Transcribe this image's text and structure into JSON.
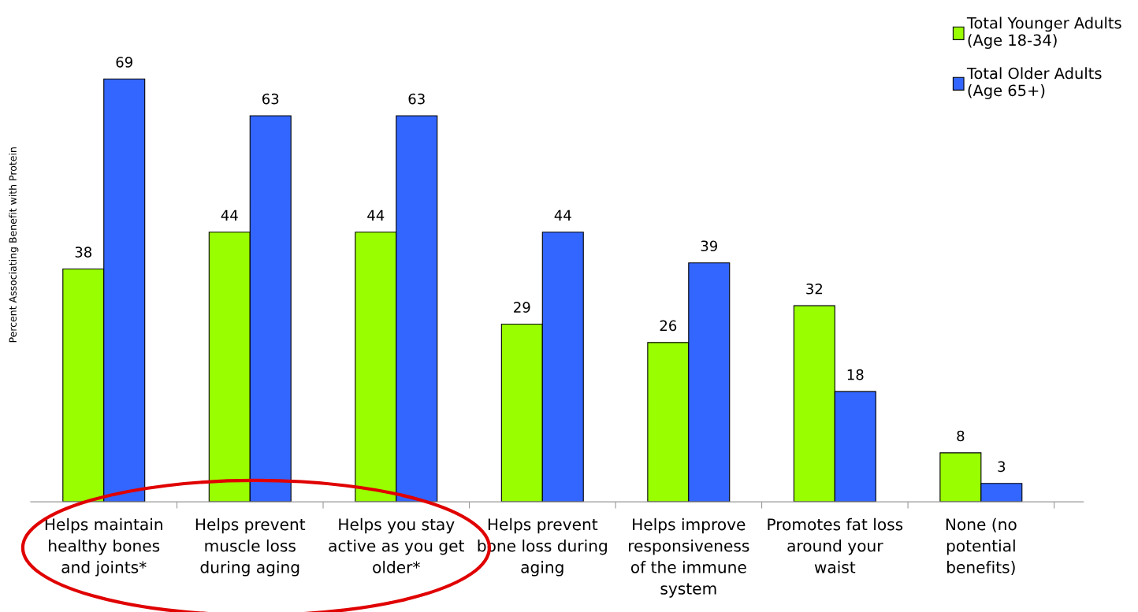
{
  "chart_data": {
    "type": "bar",
    "ylabel": "Percent Associating Benefit with Protein",
    "categories": [
      "Helps maintain\nhealthy bones\nand joints*",
      "Helps prevent\nmuscle loss\nduring aging",
      "Helps you stay\nactive as you get\nolder*",
      "Helps prevent\nbone loss during\naging",
      "Helps improve\nresponsiveness\nof the immune\nsystem",
      "Promotes fat loss\naround your\nwaist",
      "None (no\npotential\nbenefits)"
    ],
    "series": [
      {
        "name": "Total Younger Adults\n(Age 18-34)",
        "color": "#99ff00",
        "values": [
          38,
          44,
          44,
          29,
          26,
          32,
          8
        ]
      },
      {
        "name": "Total Older Adults\n(Age 65+)",
        "color": "#3366ff",
        "values": [
          69,
          63,
          63,
          44,
          39,
          18,
          3
        ]
      }
    ],
    "data_labels": true,
    "legend": "top right",
    "grid": false,
    "tick_labels": "x"
  }
}
